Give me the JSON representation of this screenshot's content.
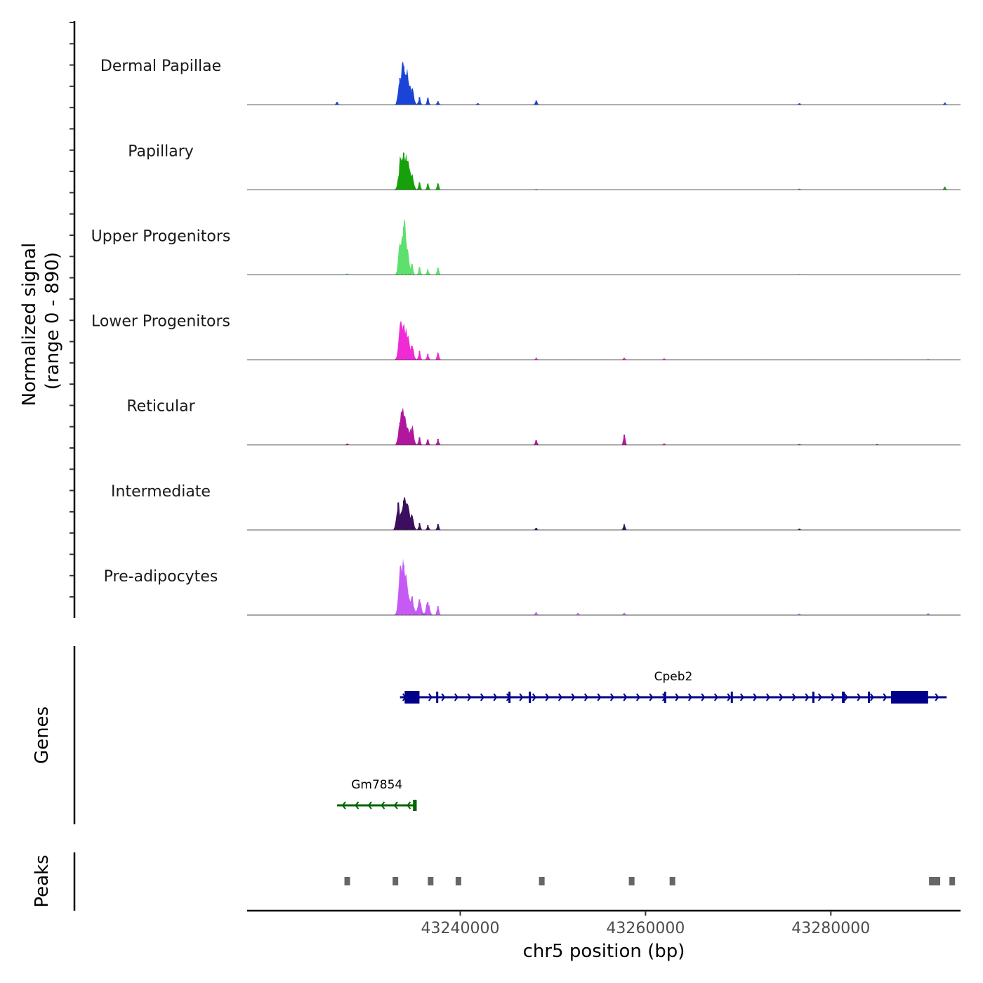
{
  "chart_data": {
    "type": "area",
    "title": "",
    "genome": "chr5",
    "xlabel": "chr5 position (bp)",
    "ylabel": "Normalized signal",
    "ylabel_range": "(range 0 - 890)",
    "ylim": [
      0,
      890
    ],
    "xlim": [
      43217000,
      43294000
    ],
    "xticks": [
      43240000,
      43260000,
      43280000
    ],
    "xtick_labels": [
      "43240000",
      "43260000",
      "43280000"
    ],
    "tracks": [
      {
        "name": "Dermal Papillae",
        "color": "#1a44d6",
        "peaks": [
          [
            43226700,
            40
          ],
          [
            43233500,
            390
          ],
          [
            43233900,
            560
          ],
          [
            43234300,
            410
          ],
          [
            43234800,
            230
          ],
          [
            43235600,
            110
          ],
          [
            43236500,
            100
          ],
          [
            43237600,
            50
          ],
          [
            43241900,
            20
          ],
          [
            43248200,
            60
          ],
          [
            43276600,
            20
          ],
          [
            43292300,
            30
          ]
        ]
      },
      {
        "name": "Papillary",
        "color": "#16a10a",
        "peaks": [
          [
            43233500,
            370
          ],
          [
            43233900,
            540
          ],
          [
            43234300,
            420
          ],
          [
            43234800,
            200
          ],
          [
            43235600,
            110
          ],
          [
            43236500,
            90
          ],
          [
            43237600,
            90
          ],
          [
            43248200,
            10
          ],
          [
            43276600,
            15
          ],
          [
            43292300,
            45
          ]
        ]
      },
      {
        "name": "Upper Progenitors",
        "color": "#5ee06e",
        "peaks": [
          [
            43227800,
            20
          ],
          [
            43233500,
            430
          ],
          [
            43233900,
            700
          ],
          [
            43234300,
            370
          ],
          [
            43234800,
            150
          ],
          [
            43235600,
            110
          ],
          [
            43236500,
            80
          ],
          [
            43237600,
            100
          ],
          [
            43276600,
            15
          ]
        ]
      },
      {
        "name": "Lower Progenitors",
        "color": "#f02bd6",
        "peaks": [
          [
            43233500,
            400
          ],
          [
            43233900,
            500
          ],
          [
            43234300,
            310
          ],
          [
            43234800,
            200
          ],
          [
            43235600,
            130
          ],
          [
            43236500,
            90
          ],
          [
            43237600,
            100
          ],
          [
            43248200,
            30
          ],
          [
            43257700,
            30
          ],
          [
            43262000,
            20
          ],
          [
            43290500,
            10
          ]
        ]
      },
      {
        "name": "Reticular",
        "color": "#b0179c",
        "peaks": [
          [
            43227800,
            20
          ],
          [
            43233500,
            330
          ],
          [
            43233900,
            420
          ],
          [
            43234300,
            250
          ],
          [
            43234800,
            250
          ],
          [
            43235600,
            110
          ],
          [
            43236500,
            80
          ],
          [
            43237600,
            90
          ],
          [
            43248200,
            70
          ],
          [
            43257700,
            150
          ],
          [
            43262000,
            20
          ],
          [
            43276600,
            15
          ],
          [
            43285000,
            15
          ]
        ]
      },
      {
        "name": "Intermediate",
        "color": "#3b0f5e",
        "peaks": [
          [
            43233300,
            400
          ],
          [
            43233900,
            430
          ],
          [
            43234300,
            350
          ],
          [
            43234800,
            200
          ],
          [
            43235600,
            100
          ],
          [
            43236500,
            70
          ],
          [
            43237600,
            90
          ],
          [
            43248200,
            30
          ],
          [
            43257700,
            80
          ],
          [
            43276600,
            20
          ]
        ]
      },
      {
        "name": "Pre-adipocytes",
        "color": "#c55bf3",
        "peaks": [
          [
            43233500,
            560
          ],
          [
            43233900,
            730
          ],
          [
            43234300,
            360
          ],
          [
            43234800,
            270
          ],
          [
            43235600,
            230
          ],
          [
            43236500,
            190
          ],
          [
            43237600,
            130
          ],
          [
            43248200,
            40
          ],
          [
            43252700,
            30
          ],
          [
            43257700,
            30
          ],
          [
            43276600,
            20
          ],
          [
            43290500,
            25
          ]
        ]
      }
    ],
    "genes": {
      "panel_label": "Genes",
      "items": [
        {
          "name": "Cpeb2",
          "strand": "+",
          "color": "#00008b",
          "start": 43233500,
          "end": 43292500,
          "exons": [
            [
              43234000,
              43235600
            ],
            [
              43237400,
              43237600
            ],
            [
              43245200,
              43245300
            ],
            [
              43247400,
              43247500
            ],
            [
              43262000,
              43262100
            ],
            [
              43269200,
              43269300
            ],
            [
              43278000,
              43278200
            ],
            [
              43281200,
              43281500
            ],
            [
              43284000,
              43284200
            ],
            [
              43286500,
              43290500
            ]
          ]
        },
        {
          "name": "Gm7854",
          "strand": "-",
          "color": "#006400",
          "start": 43226700,
          "end": 43235300,
          "exons": [
            [
              43234900,
              43235300
            ]
          ]
        }
      ]
    },
    "peaks": {
      "panel_label": "Peaks",
      "color": "#666666",
      "regions": [
        [
          43227500,
          43228000
        ],
        [
          43232700,
          43233200
        ],
        [
          43236500,
          43237000
        ],
        [
          43239500,
          43240000
        ],
        [
          43248500,
          43249000
        ],
        [
          43258200,
          43258700
        ],
        [
          43262600,
          43263100
        ],
        [
          43290600,
          43291100
        ],
        [
          43291200,
          43291600
        ],
        [
          43292800,
          43293300
        ]
      ]
    }
  }
}
